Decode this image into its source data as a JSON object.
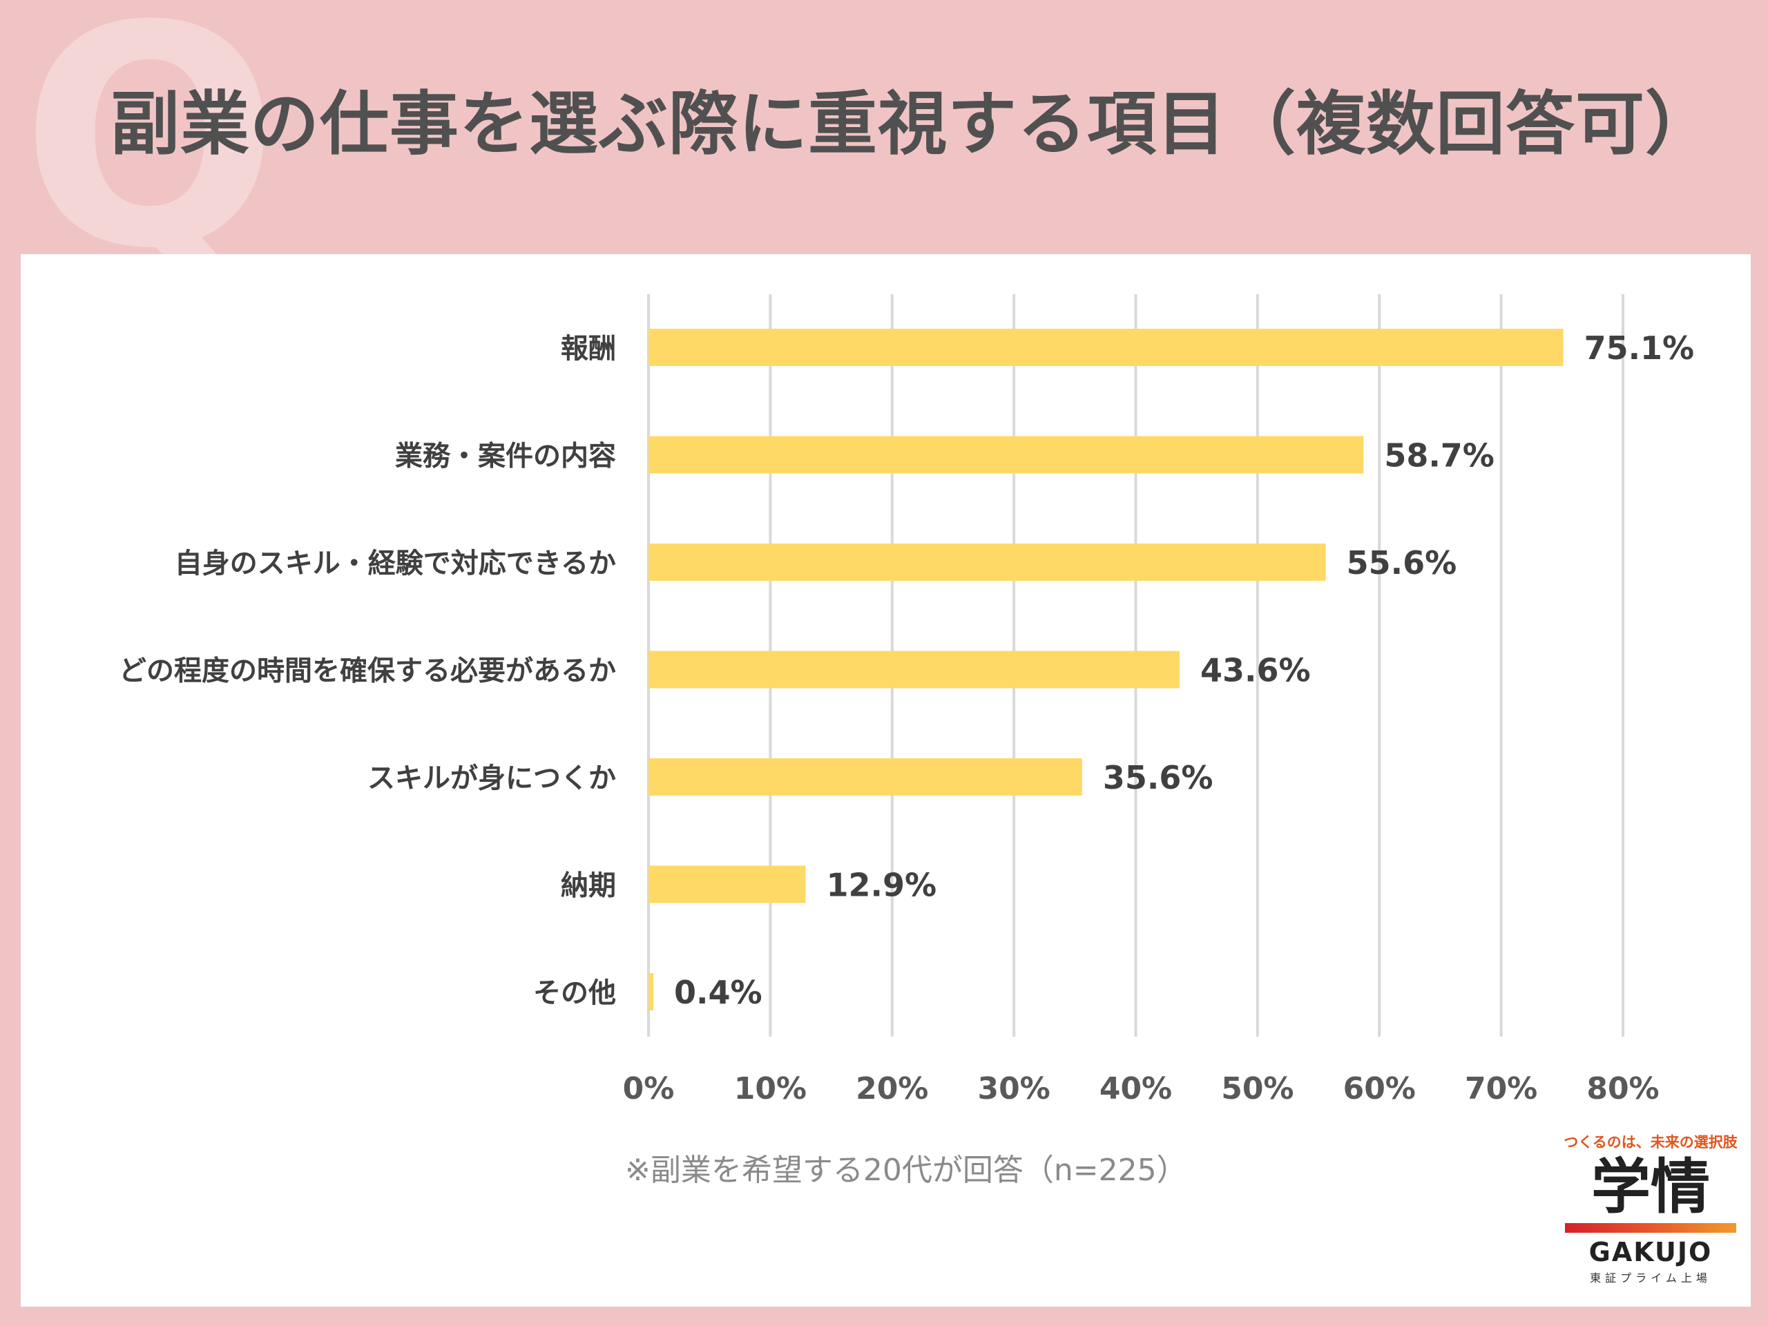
{
  "title": "副業の仕事を選ぶ際に重視する項目（複数回答可）",
  "q_mark": "Q",
  "note": "※副業を希望する20代が回答（n=225）",
  "logo": {
    "tagline": "つくるのは、未来の選択肢",
    "mark": "学情",
    "name": "GAKUJO",
    "sub": "東証プライム上場"
  },
  "colors": {
    "background": "#f0c4c5",
    "bar": "#ffd966",
    "text": "#505050",
    "grid": "#d9d9d9"
  },
  "chart_data": {
    "type": "bar",
    "orientation": "horizontal",
    "categories": [
      "報酬",
      "業務・案件の内容",
      "自身のスキル・経験で対応できるか",
      "どの程度の時間を確保する必要があるか",
      "スキルが身につくか",
      "納期",
      "その他"
    ],
    "values": [
      75.1,
      58.7,
      55.6,
      43.6,
      35.6,
      12.9,
      0.4
    ],
    "data_labels": [
      "75.1%",
      "58.7%",
      "55.6%",
      "43.6%",
      "35.6%",
      "12.9%",
      "0.4%"
    ],
    "xlim": [
      0,
      80
    ],
    "x_ticks": [
      0,
      10,
      20,
      30,
      40,
      50,
      60,
      70,
      80
    ],
    "x_tick_labels": [
      "0%",
      "10%",
      "20%",
      "30%",
      "40%",
      "50%",
      "60%",
      "70%",
      "80%"
    ],
    "grid": true,
    "title": "",
    "xlabel": "",
    "ylabel": ""
  }
}
